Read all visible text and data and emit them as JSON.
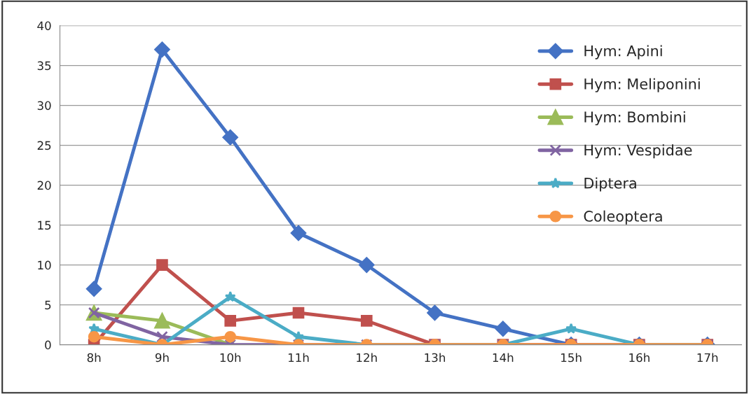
{
  "chart_data": {
    "type": "line",
    "categories": [
      "8h",
      "9h",
      "10h",
      "11h",
      "12h",
      "13h",
      "14h",
      "15h",
      "16h",
      "17h"
    ],
    "ylim": [
      0,
      40
    ],
    "yticks": [
      0,
      5,
      10,
      15,
      20,
      25,
      30,
      35,
      40
    ],
    "grid": "y",
    "legend": "top right",
    "line_style": "solid",
    "series": [
      {
        "name": "Hym: Apini",
        "color": "#4472c4",
        "marker": "diamond",
        "values": [
          7,
          37,
          26,
          14,
          10,
          4,
          2,
          0,
          0,
          0
        ]
      },
      {
        "name": "Hym: Meliponini",
        "color": "#c0504d",
        "marker": "square",
        "values": [
          0,
          10,
          3,
          4,
          3,
          0,
          0,
          0,
          0,
          0
        ]
      },
      {
        "name": "Hym: Bombini",
        "color": "#9bbb59",
        "marker": "triangle",
        "values": [
          4,
          3,
          0,
          null,
          null,
          null,
          null,
          null,
          null,
          null
        ]
      },
      {
        "name": "Hym: Vespidae",
        "color": "#8064a2",
        "marker": "cross",
        "values": [
          4,
          1,
          0,
          0,
          0,
          0,
          0,
          0,
          0,
          0
        ]
      },
      {
        "name": "Diptera",
        "color": "#4bacc6",
        "marker": "star",
        "values": [
          2,
          0,
          6,
          1,
          0,
          0,
          0,
          2,
          0,
          0
        ]
      },
      {
        "name": "Coleoptera",
        "color": "#f79646",
        "marker": "circle",
        "values": [
          1,
          0,
          1,
          0,
          0,
          0,
          0,
          0,
          0,
          0
        ]
      }
    ]
  }
}
